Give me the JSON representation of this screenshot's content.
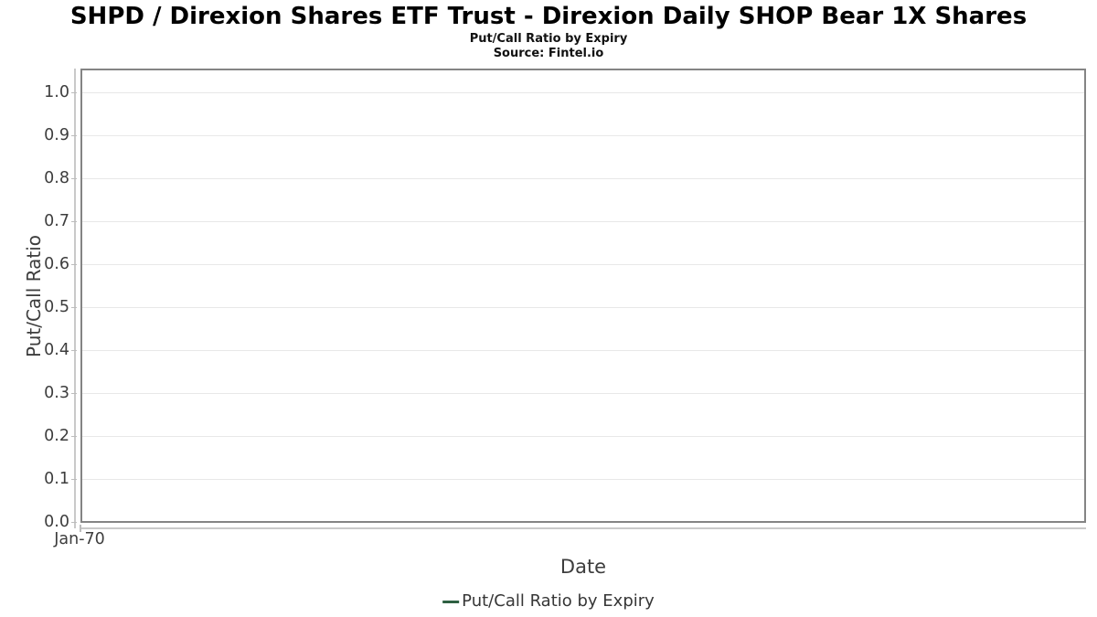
{
  "figure": {
    "title": "SHPD / Direxion Shares ETF Trust - Direxion Daily SHOP Bear 1X Shares",
    "subtitle": "Put/Call Ratio by Expiry",
    "source": "Source: Fintel.io"
  },
  "chart_data": {
    "type": "line",
    "title": "SHPD / Direxion Shares ETF Trust - Direxion Daily SHOP Bear 1X Shares",
    "subtitle": "Put/Call Ratio by Expiry",
    "source": "Source: Fintel.io",
    "xlabel": "Date",
    "ylabel": "Put/Call Ratio",
    "x_tick_labels": [
      "Jan-70"
    ],
    "y_tick_labels": [
      "0.0",
      "0.1",
      "0.2",
      "0.3",
      "0.4",
      "0.5",
      "0.6",
      "0.7",
      "0.8",
      "0.9",
      "1.0"
    ],
    "ylim": [
      0.0,
      1.055
    ],
    "grid": "horizontal",
    "legend_position": "bottom-center",
    "series": [
      {
        "name": "Put/Call Ratio by Expiry",
        "color": "#2e5f41",
        "x": [],
        "values": []
      }
    ]
  }
}
